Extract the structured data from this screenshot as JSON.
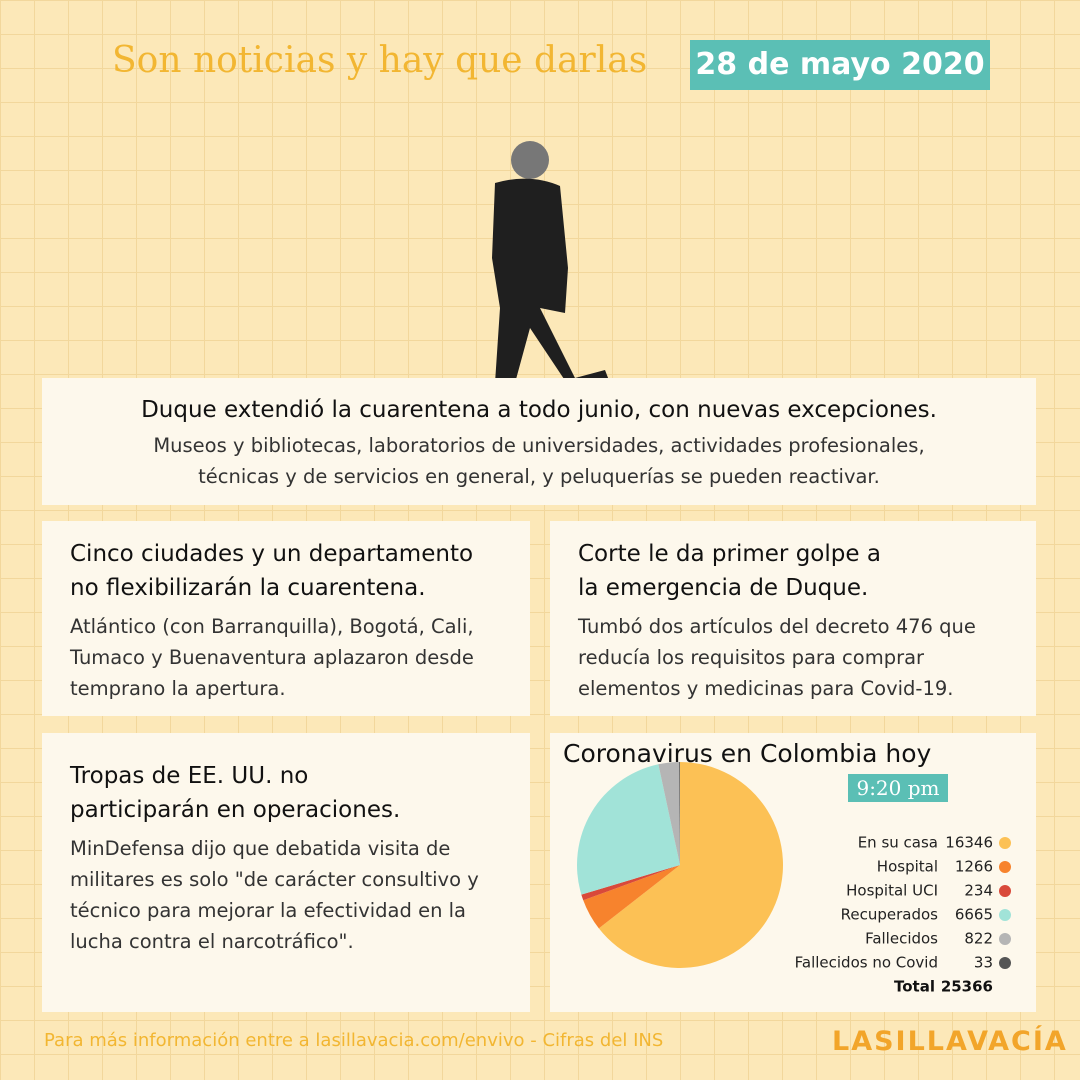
{
  "header": {
    "title": "Son noticias y hay que darlas",
    "date": "28 de mayo 2020"
  },
  "lead": {
    "headline": "Duque extendió la cuarentena a todo junio, con nuevas excepciones.",
    "body": [
      "Museos y bibliotecas, laboratorios de universidades, actividades profesionales,",
      "técnicas y de servicios en general, y peluquerías se pueden reactivar."
    ]
  },
  "stories": [
    {
      "headline": [
        "Cinco ciudades y un departamento",
        "no flexibilizarán la cuarentena."
      ],
      "body": [
        "Atlántico (con Barranquilla), Bogotá, Cali,",
        "Tumaco y Buenaventura aplazaron desde",
        "temprano la apertura."
      ]
    },
    {
      "headline": [
        "Corte le da primer golpe a",
        "la emergencia de Duque."
      ],
      "body": [
        "Tumbó dos artículos del decreto 476 que",
        "reducía los requisitos para comprar",
        "elementos y medicinas para Covid-19."
      ]
    },
    {
      "headline": [
        "Tropas de EE. UU. no",
        "participarán en operaciones."
      ],
      "body": [
        "MinDefensa dijo que debatida visita de",
        "militares es solo \"de carácter consultivo y",
        "técnico para mejorar la efectividad en la",
        "lucha contra el narcotráfico\"."
      ]
    }
  ],
  "chart": {
    "type": "pie",
    "title": "Coronavirus en Colombia hoy",
    "time": "9:20 pm",
    "labels": [
      "En su casa",
      "Hospital",
      "Hospital UCI",
      "Recuperados",
      "Fallecidos",
      "Fallecidos no Covid"
    ],
    "values": [
      16346,
      1266,
      234,
      6665,
      822,
      33
    ],
    "colors": [
      "#fcc155",
      "#f7832d",
      "#d9493a",
      "#a1e3d8",
      "#b5b5b5",
      "#555555"
    ],
    "total_label": "Total",
    "total": 25366
  },
  "footer": {
    "text": "Para más información entre a lasillavacia.com/envivo - Cifras del INS",
    "logo": "LASILLAVACÍA"
  }
}
